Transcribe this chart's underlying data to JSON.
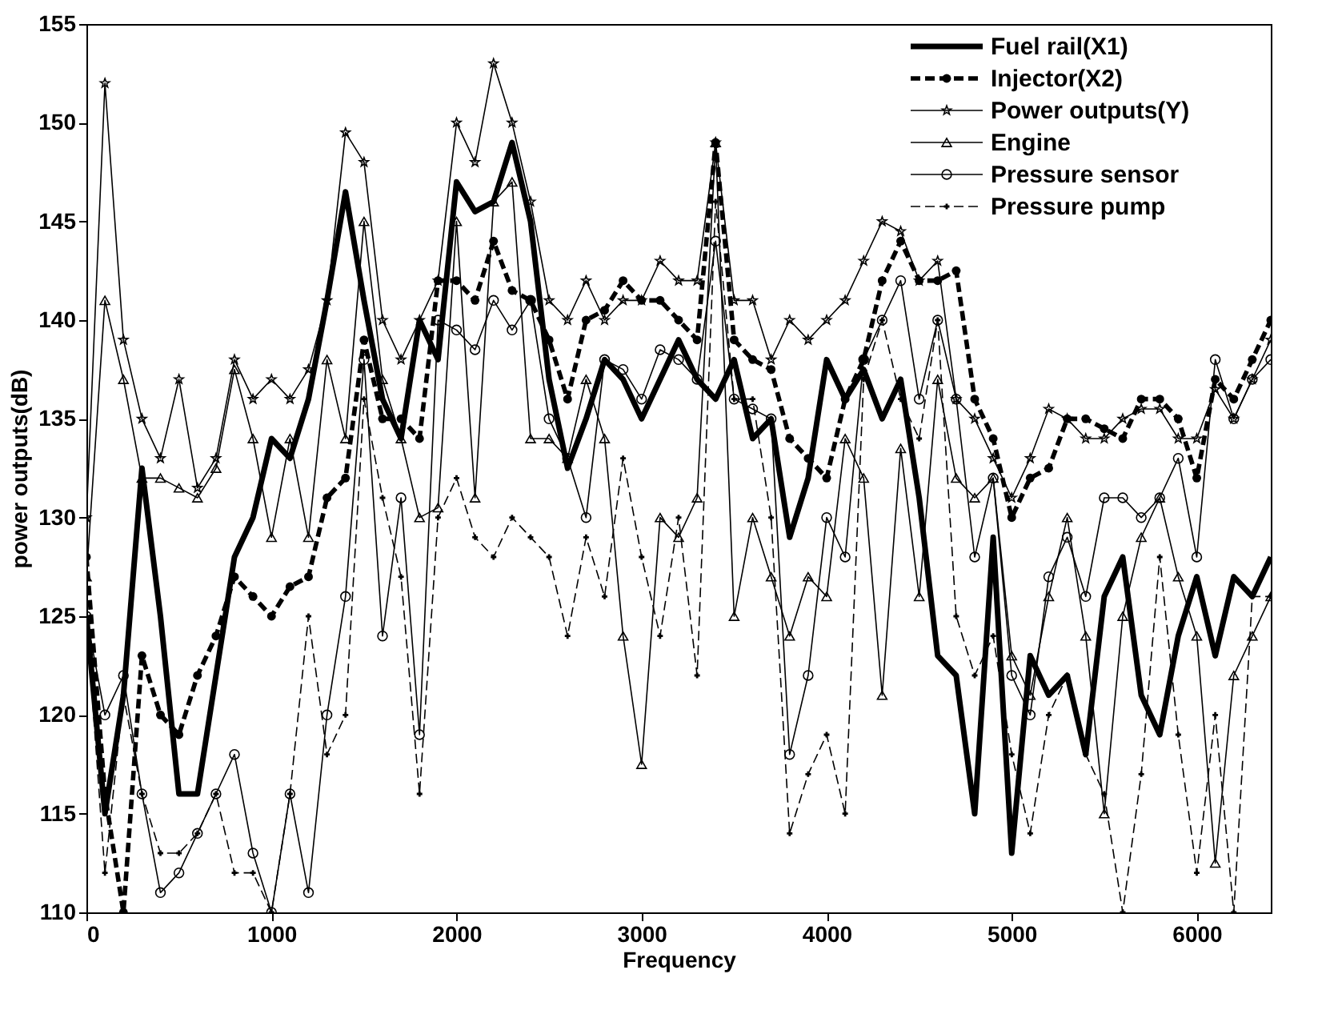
{
  "chart_data": {
    "type": "line",
    "xlabel": "Frequency",
    "ylabel": "power outputs(dB)",
    "x": [
      0,
      100,
      200,
      300,
      400,
      500,
      600,
      700,
      800,
      900,
      1000,
      1100,
      1200,
      1300,
      1400,
      1500,
      1600,
      1700,
      1800,
      1900,
      2000,
      2100,
      2200,
      2300,
      2400,
      2500,
      2600,
      2700,
      2800,
      2900,
      3000,
      3100,
      3200,
      3300,
      3400,
      3500,
      3600,
      3700,
      3800,
      3900,
      4000,
      4100,
      4200,
      4300,
      4400,
      4500,
      4600,
      4700,
      4800,
      4900,
      5000,
      5100,
      5200,
      5300,
      5400,
      5500,
      5600,
      5700,
      5800,
      5900,
      6000,
      6100,
      6200,
      6300,
      6400
    ],
    "series": [
      {
        "name": "Fuel rail(X1)",
        "color": "#000000",
        "line_style": "solid",
        "marker": "none",
        "values": [
          125,
          115,
          121,
          132.5,
          125,
          116,
          116,
          122,
          128,
          130,
          134,
          133,
          136,
          141,
          146.5,
          141,
          136,
          134,
          140,
          138,
          147,
          145.5,
          146,
          149,
          145,
          137,
          132.5,
          135,
          138,
          137,
          135,
          137,
          139,
          137,
          136,
          138,
          134,
          135,
          129,
          132,
          138,
          136,
          137.5,
          135,
          137,
          131,
          123,
          122,
          115,
          129,
          113,
          123,
          121,
          122,
          118,
          126,
          128,
          121,
          119,
          124,
          127,
          123,
          127,
          126,
          128
        ]
      },
      {
        "name": "Injector(X2)",
        "color": "#000000",
        "line_style": "dashed",
        "marker": "circle",
        "values": [
          128,
          116,
          110,
          123,
          120,
          119,
          122,
          124,
          127,
          126,
          125,
          126.5,
          127,
          131,
          132,
          139,
          135,
          135,
          134,
          142,
          142,
          141,
          144,
          141.5,
          141,
          139,
          136,
          140,
          140.5,
          142,
          141,
          141,
          140,
          139,
          149,
          139,
          138,
          137.5,
          134,
          133,
          132,
          136,
          138,
          142,
          144,
          142,
          142,
          142.5,
          136,
          134,
          130,
          132,
          132.5,
          135,
          135,
          134.5,
          134,
          136,
          136,
          135,
          132,
          137,
          136,
          138,
          140
        ]
      },
      {
        "name": "Power outputs(Y)",
        "color": "#000000",
        "line_style": "solid",
        "marker": "star",
        "values": [
          130,
          152,
          139,
          135,
          133,
          137,
          131.5,
          133,
          138,
          136,
          137,
          136,
          137.5,
          141,
          149.5,
          148,
          140,
          138,
          140,
          142,
          150,
          148,
          153,
          150,
          146,
          141,
          140,
          142,
          140,
          141,
          141,
          143,
          142,
          142,
          149,
          141,
          141,
          138,
          140,
          139,
          140,
          141,
          143,
          145,
          144.5,
          142,
          143,
          136,
          135,
          133,
          131,
          133,
          135.5,
          135,
          134,
          134,
          135,
          135.5,
          135.5,
          134,
          134,
          136.5,
          135,
          137,
          139
        ]
      },
      {
        "name": "Engine",
        "color": "#000000",
        "line_style": "solid",
        "marker": "triangle",
        "values": [
          127,
          141,
          137,
          132,
          132,
          131.5,
          131,
          132.5,
          137.5,
          134,
          129,
          134,
          129,
          138,
          134,
          145,
          137,
          134,
          130,
          130.5,
          145,
          131,
          146,
          147,
          134,
          134,
          133,
          137,
          134,
          124,
          117.5,
          130,
          129,
          131,
          149,
          125,
          130,
          127,
          124,
          127,
          126,
          134,
          132,
          121,
          133.5,
          126,
          137,
          132,
          131,
          132,
          123,
          121,
          126,
          130,
          124,
          115,
          125,
          129,
          131,
          127,
          124,
          112.5,
          122,
          124,
          126
        ]
      },
      {
        "name": "Pressure sensor",
        "color": "#000000",
        "line_style": "solid",
        "marker": "circle",
        "values": [
          125,
          120,
          122,
          116,
          111,
          112,
          114,
          116,
          118,
          113,
          110,
          116,
          111,
          120,
          126,
          138,
          124,
          131,
          119,
          140,
          139.5,
          138.5,
          141,
          139.5,
          141,
          135,
          133,
          130,
          138,
          137.5,
          136,
          138.5,
          138,
          137,
          144,
          136,
          135.5,
          135,
          118,
          122,
          130,
          128,
          138,
          140,
          142,
          136,
          140,
          136,
          128,
          132,
          122,
          120,
          127,
          129,
          126,
          131,
          131,
          130,
          131,
          133,
          128,
          138,
          135,
          137,
          138
        ]
      },
      {
        "name": "Pressure pump",
        "color": "#000000",
        "line_style": "dashed",
        "marker": "cross",
        "values": [
          125,
          112,
          121,
          116,
          113,
          113,
          114,
          116,
          112,
          112,
          110,
          116,
          125,
          118,
          120,
          136,
          131,
          127,
          116,
          130,
          132,
          129,
          128,
          130,
          129,
          128,
          124,
          129,
          126,
          133,
          128,
          124,
          130,
          122,
          146,
          136,
          136,
          130,
          114,
          117,
          119,
          115,
          137,
          140,
          136,
          134,
          140,
          125,
          122,
          124,
          118,
          114,
          120,
          122,
          118,
          116,
          110,
          117,
          128,
          119,
          112,
          120,
          110,
          126,
          126
        ]
      }
    ],
    "xlim": [
      0,
      6400
    ],
    "xticks": [
      0,
      1000,
      2000,
      3000,
      4000,
      5000,
      6000
    ],
    "ylim": [
      110,
      155
    ],
    "yticks": [
      110,
      115,
      120,
      125,
      130,
      135,
      140,
      145,
      150,
      155
    ],
    "grid": false,
    "legend": "top right"
  }
}
